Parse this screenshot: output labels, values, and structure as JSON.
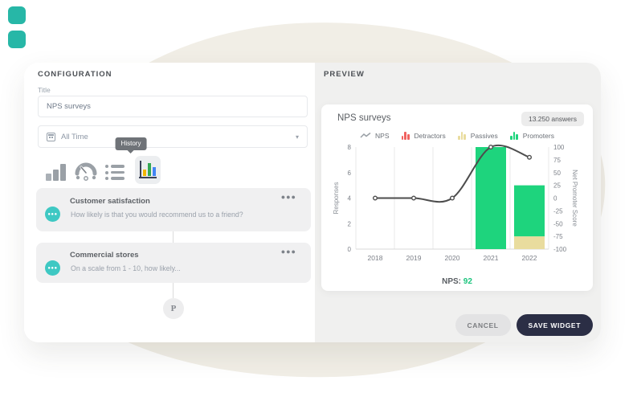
{
  "decor": {
    "square_color": "#27b7a7"
  },
  "config": {
    "heading": "CONFIGURATION",
    "title_label": "Title",
    "title_value": "NPS surveys",
    "time_range_value": "All Time",
    "tooltip": "History",
    "chart_type_options": [
      {
        "name": "bar-chart",
        "selected": false
      },
      {
        "name": "gauge",
        "selected": false
      },
      {
        "name": "list",
        "selected": false
      },
      {
        "name": "history",
        "selected": true
      }
    ],
    "questions": [
      {
        "title": "Customer satisfaction",
        "subtitle": "How likely is that you would recommend us to a friend?"
      },
      {
        "title": "Commercial stores",
        "subtitle": "On a scale from 1 - 10, how likely..."
      }
    ],
    "logo_letter": "P"
  },
  "preview": {
    "heading": "PREVIEW",
    "card_title": "NPS surveys",
    "answers_badge": "13.250 answers",
    "nps_label": "NPS:",
    "nps_value": "92",
    "nps_value_color": "#1bc47d",
    "cancel_label": "CANCEL",
    "save_label": "SAVE WIDGET",
    "save_button_color": "#2b2e45"
  },
  "chart_data": {
    "type": "combo bar+line",
    "categories": [
      "2018",
      "2019",
      "2020",
      "2021",
      "2022"
    ],
    "series": [
      {
        "name": "NPS",
        "type": "line",
        "axis": "right",
        "color": "#4d4d4d",
        "values": [
          0,
          0,
          0,
          100,
          80
        ]
      },
      {
        "name": "Detractors",
        "type": "bar",
        "axis": "left",
        "color": "#f0625f",
        "values": [
          0,
          0,
          0,
          0,
          0
        ]
      },
      {
        "name": "Passives",
        "type": "bar",
        "axis": "left",
        "color": "#e9dc9e",
        "values": [
          0,
          0,
          0,
          0,
          1
        ]
      },
      {
        "name": "Promoters",
        "type": "bar",
        "axis": "left",
        "color": "#1ed47d",
        "values": [
          0,
          0,
          0,
          8,
          4
        ]
      }
    ],
    "left_axis": {
      "label": "Responses",
      "ticks": [
        0,
        2,
        4,
        6,
        8
      ],
      "range": [
        0,
        8
      ]
    },
    "right_axis": {
      "label": "Net Promoter Score",
      "ticks": [
        -100,
        -75,
        -50,
        -25,
        0,
        25,
        50,
        75,
        100
      ],
      "range": [
        -100,
        100
      ]
    },
    "legend_position": "top",
    "grid": "vertical",
    "stacked_bars": true
  }
}
